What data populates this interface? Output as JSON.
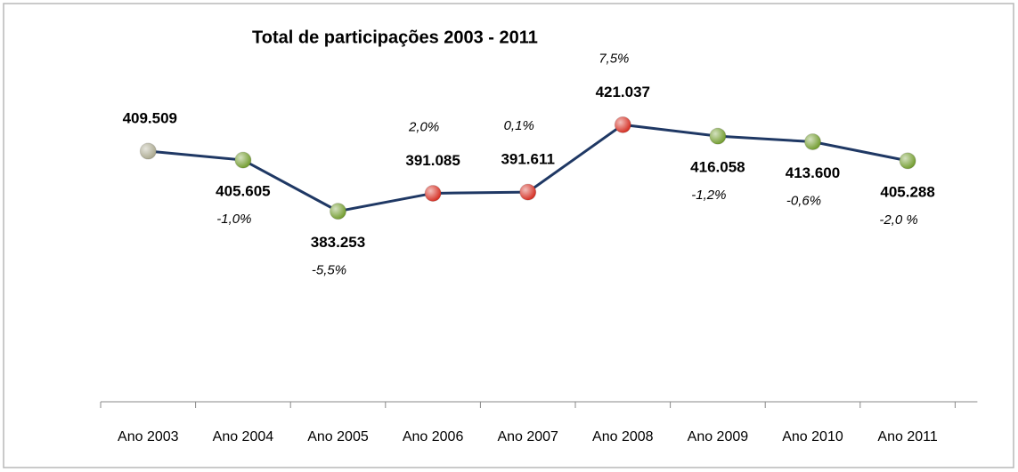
{
  "chart_data": {
    "type": "line",
    "title": "Total de participações 2003 - 2011",
    "categories": [
      "Ano 2003",
      "Ano 2004",
      "Ano 2005",
      "Ano 2006",
      "Ano 2007",
      "Ano 2008",
      "Ano 2009",
      "Ano 2010",
      "Ano 2011"
    ],
    "series": [
      {
        "name": null,
        "color": "#1f3864",
        "values": [
          409509,
          405605,
          383253,
          391085,
          391611,
          421037,
          416058,
          413600,
          405288
        ],
        "value_labels": [
          "409.509",
          "405.605",
          "383.253",
          "391.085",
          "391.611",
          "421.037",
          "416.058",
          "413.600",
          "405.288"
        ],
        "point_colors": [
          "#a8a68c",
          "#6f9a2a",
          "#6f9a2a",
          "#d42a1e",
          "#d42a1e",
          "#d42a1e",
          "#6f9a2a",
          "#6f9a2a",
          "#6f9a2a"
        ]
      }
    ],
    "changes": [
      null,
      -1.0,
      -5.5,
      2.0,
      0.1,
      7.5,
      -1.2,
      -0.6,
      -2.0
    ],
    "change_labels": [
      null,
      "-1,0%",
      "-5,5%",
      "2,0%",
      "0,1%",
      "7,5%",
      "-1,2%",
      "-0,6%",
      "-2,0 %"
    ],
    "ylim": [
      300000,
      460000
    ]
  }
}
